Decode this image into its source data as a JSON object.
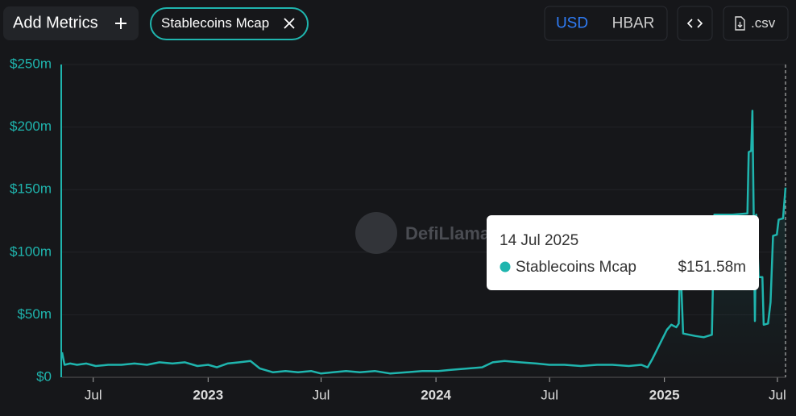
{
  "controls": {
    "add_metrics": "Add Metrics",
    "currencies": [
      "USD",
      "HBAR"
    ],
    "active_currency": "USD",
    "csv": ".csv"
  },
  "watermark": "DefiLlama",
  "chart_data": {
    "type": "line",
    "x": [
      "2022-05-12",
      "2022-05-16",
      "2022-05-25",
      "2022-06-05",
      "2022-06-20",
      "2022-07-05",
      "2022-07-25",
      "2022-08-15",
      "2022-09-05",
      "2022-09-25",
      "2022-10-15",
      "2022-11-05",
      "2022-11-25",
      "2022-12-15",
      "2023-01-01",
      "2023-01-15",
      "2023-02-01",
      "2023-02-20",
      "2023-03-10",
      "2023-03-25",
      "2023-04-15",
      "2023-05-05",
      "2023-05-25",
      "2023-06-15",
      "2023-07-01",
      "2023-07-20",
      "2023-08-10",
      "2023-09-01",
      "2023-09-25",
      "2023-10-20",
      "2023-11-15",
      "2023-12-10",
      "2024-01-05",
      "2024-01-25",
      "2024-02-20",
      "2024-03-15",
      "2024-04-01",
      "2024-04-20",
      "2024-05-15",
      "2024-06-10",
      "2024-07-01",
      "2024-07-25",
      "2024-08-20",
      "2024-09-15",
      "2024-10-10",
      "2024-11-05",
      "2024-11-25",
      "2024-12-05",
      "2024-12-12",
      "2024-12-20",
      "2024-12-28",
      "2025-01-05",
      "2025-01-12",
      "2025-01-20",
      "2025-01-24",
      "2025-01-26",
      "2025-01-31",
      "2025-02-20",
      "2025-03-05",
      "2025-03-18",
      "2025-03-22",
      "2025-04-20",
      "2025-05-14",
      "2025-05-16",
      "2025-05-20",
      "2025-05-22",
      "2025-05-24",
      "2025-05-26",
      "2025-05-28",
      "2025-06-01",
      "2025-06-07",
      "2025-06-09",
      "2025-06-16",
      "2025-06-20",
      "2025-06-24",
      "2025-06-30",
      "2025-07-03",
      "2025-07-10",
      "2025-07-14"
    ],
    "series": [
      {
        "name": "Stablecoins Mcap",
        "color": "#1fb5ae",
        "values": [
          20,
          10,
          11,
          10,
          11,
          9,
          10,
          10,
          11,
          10,
          12,
          11,
          12,
          9,
          10,
          8,
          11,
          12,
          13,
          7,
          4,
          5,
          4,
          5,
          3,
          4,
          5,
          4,
          5,
          3,
          4,
          5,
          5,
          6,
          7,
          8,
          12,
          13,
          12,
          11,
          10,
          10,
          9,
          10,
          10,
          9,
          10,
          8,
          14,
          22,
          30,
          38,
          42,
          40,
          43,
          100,
          35,
          33,
          32,
          34,
          130,
          130,
          131,
          180,
          181,
          213,
          130,
          45,
          130,
          80,
          80,
          42,
          43,
          60,
          113,
          114,
          126,
          127,
          151.58
        ],
        "value_labels": [
          null,
          null,
          null,
          null,
          null,
          null,
          null,
          null,
          null,
          null,
          null,
          null,
          null,
          null,
          null,
          null,
          null,
          null,
          null,
          null,
          null,
          null,
          null,
          null,
          null,
          null,
          null,
          null,
          null,
          null,
          null,
          null,
          null,
          null,
          null,
          null,
          null,
          null,
          null,
          null,
          null,
          null,
          null,
          null,
          null,
          null,
          null,
          null,
          null,
          null,
          null,
          null,
          null,
          null,
          null,
          null,
          null,
          null,
          null,
          null,
          null,
          null,
          null,
          null,
          null,
          null,
          null,
          null,
          null,
          null,
          null,
          null,
          null,
          null,
          null,
          null,
          null,
          null,
          "$151.58m"
        ]
      }
    ],
    "tooltip_date": "14 Jul 2025",
    "xlim": [
      "2022-05-12",
      "2025-07-14"
    ],
    "xticks": [
      {
        "value": "2022-07-01",
        "label": "Jul"
      },
      {
        "value": "2023-01-01",
        "label": "2023"
      },
      {
        "value": "2023-07-01",
        "label": "Jul"
      },
      {
        "value": "2024-01-01",
        "label": "2024"
      },
      {
        "value": "2024-07-01",
        "label": "Jul"
      },
      {
        "value": "2025-01-01",
        "label": "2025"
      },
      {
        "value": "2025-07-01",
        "label": "Jul"
      }
    ],
    "ylim": [
      0,
      250
    ],
    "yticks": [
      {
        "value": 0,
        "label": "$0"
      },
      {
        "value": 50,
        "label": "$50m"
      },
      {
        "value": 100,
        "label": "$100m"
      },
      {
        "value": 150,
        "label": "$150m"
      },
      {
        "value": 200,
        "label": "$200m"
      },
      {
        "value": 250,
        "label": "$250m"
      }
    ],
    "grid": true
  }
}
